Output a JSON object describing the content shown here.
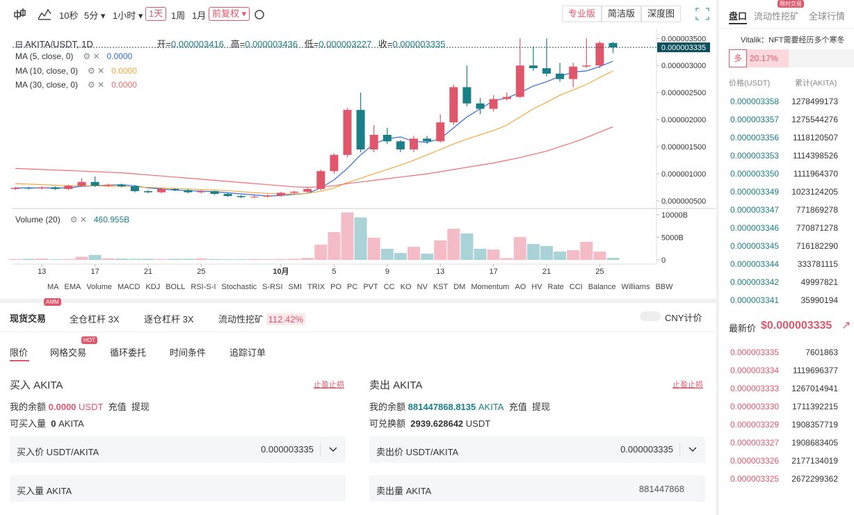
{
  "toolbar": {
    "intervals": [
      "10秒",
      "5分",
      "1小时",
      "1天",
      "1周",
      "1月"
    ],
    "adjust": "前复权",
    "views": [
      "专业版",
      "简洁版",
      "深度图"
    ]
  },
  "legend": {
    "symbol": "AKITA/USDT, 1D",
    "open_label": "开=",
    "open": "0.000003416",
    "high_label": "高=",
    "high": "0.000003436",
    "low_label": "低=",
    "low": "0.000003227",
    "close_label": "收=",
    "close": "0.000003335"
  },
  "chart_data": {
    "type": "candlestick",
    "categories": [
      null,
      null,
      "13",
      null,
      null,
      null,
      "17",
      null,
      null,
      null,
      "21",
      null,
      null,
      null,
      "25",
      null,
      null,
      null,
      null,
      null,
      "10月",
      null,
      null,
      null,
      "5",
      null,
      null,
      null,
      "9",
      null,
      null,
      null,
      "13",
      null,
      null,
      null,
      "17",
      null,
      null,
      null,
      "21",
      null,
      null,
      null,
      "25",
      null
    ],
    "open": [
      7.2e-07,
      7.4e-07,
      7.3e-07,
      7.5e-07,
      7.2e-07,
      7.8e-07,
      8.5e-07,
      7.8e-07,
      8e-07,
      7.7e-07,
      6.8e-07,
      6.6e-07,
      7.2e-07,
      7e-07,
      6.6e-07,
      6.8e-07,
      6.3e-07,
      5.9e-07,
      5.7e-07,
      5.8e-07,
      6e-07,
      6.5e-07,
      6.7e-07,
      7.2e-07,
      1.05e-06,
      1.35e-06,
      2.18e-06,
      1.45e-06,
      1.72e-06,
      1.6e-06,
      1.45e-06,
      1.65e-06,
      1.6e-06,
      1.95e-06,
      2.6e-06,
      2.3e-06,
      2.2e-06,
      2.38e-06,
      2.42e-06,
      3e-06,
      2.95e-06,
      2.85e-06,
      2.75e-06,
      2.98e-06,
      3e-06,
      3.416e-06
    ],
    "high": [
      7.6e-07,
      7.6e-07,
      7.7e-07,
      7.7e-07,
      8e-07,
      9.2e-07,
      9.5e-07,
      8.2e-07,
      8.2e-07,
      7.8e-07,
      7e-07,
      7.4e-07,
      7.4e-07,
      7.2e-07,
      7e-07,
      6.9e-07,
      6.5e-07,
      6.1e-07,
      6e-07,
      6.2e-07,
      6.7e-07,
      6.9e-07,
      7.4e-07,
      1.08e-06,
      1.38e-06,
      2.22e-06,
      2.5e-06,
      1.9e-06,
      1.85e-06,
      1.62e-06,
      1.7e-06,
      1.7e-06,
      2.1e-06,
      2.65e-06,
      3e-06,
      2.4e-06,
      2.45e-06,
      2.5e-06,
      3.5e-06,
      3.35e-06,
      3.5e-06,
      3.05e-06,
      3.05e-06,
      3.5e-06,
      3.45e-06,
      3.436e-06
    ],
    "low": [
      7e-07,
      7.1e-07,
      7.1e-07,
      7e-07,
      7e-07,
      7.6e-07,
      7.6e-07,
      7.6e-07,
      7.5e-07,
      6.6e-07,
      6.4e-07,
      6.4e-07,
      6.8e-07,
      6.4e-07,
      6.4e-07,
      6.1e-07,
      5.7e-07,
      5.5e-07,
      5.5e-07,
      5.6e-07,
      5.8e-07,
      6.3e-07,
      6.5e-07,
      7e-07,
      1e-06,
      1.3e-06,
      1.4e-06,
      1.4e-06,
      1.55e-06,
      1.4e-06,
      1.4e-06,
      1.55e-06,
      1.58e-06,
      1.9e-06,
      2.25e-06,
      2.1e-06,
      2.15e-06,
      2.35e-06,
      2.4e-06,
      2.9e-06,
      2.8e-06,
      2.7e-06,
      2.6e-06,
      2.95e-06,
      2.95e-06,
      3.227e-06
    ],
    "close": [
      7.4e-07,
      7.3e-07,
      7.5e-07,
      7.2e-07,
      7.8e-07,
      8.5e-07,
      7.8e-07,
      8e-07,
      7.7e-07,
      6.8e-07,
      6.6e-07,
      7.2e-07,
      7e-07,
      6.6e-07,
      6.8e-07,
      6.3e-07,
      5.9e-07,
      5.7e-07,
      5.8e-07,
      6e-07,
      6.5e-07,
      6.7e-07,
      7.2e-07,
      1.05e-06,
      1.35e-06,
      2.18e-06,
      1.45e-06,
      1.72e-06,
      1.6e-06,
      1.45e-06,
      1.65e-06,
      1.6e-06,
      1.95e-06,
      2.6e-06,
      2.3e-06,
      2.2e-06,
      2.38e-06,
      2.42e-06,
      3e-06,
      2.95e-06,
      2.85e-06,
      2.75e-06,
      2.98e-06,
      3e-06,
      3.416e-06,
      3.335e-06
    ],
    "up_color": "#e0566b",
    "down_color": "#1a7f86",
    "up_volume_color": "#f3bcc6",
    "down_volume_color": "#a9d3d7",
    "series": [
      {
        "name": "MA (5, close, 0)",
        "value_label": "0.0000",
        "color": "#2f6ae0",
        "values": [
          7.4e-07,
          7.4e-07,
          7.4e-07,
          7.4e-07,
          7.4e-07,
          7.7e-07,
          7.8e-07,
          7.9e-07,
          8e-07,
          7.8e-07,
          7.4e-07,
          7.2e-07,
          7e-07,
          6.9e-07,
          6.8e-07,
          6.7e-07,
          6.5e-07,
          6.3e-07,
          6.1e-07,
          5.9e-07,
          6e-07,
          6.2e-07,
          6.4e-07,
          7.4e-07,
          8.9e-07,
          1.1e-06,
          1.35e-06,
          1.55e-06,
          1.65e-06,
          1.68e-06,
          1.6e-06,
          1.58e-06,
          1.65e-06,
          1.85e-06,
          2.05e-06,
          2.2e-06,
          2.35e-06,
          2.4e-06,
          2.5e-06,
          2.62e-06,
          2.7e-06,
          2.8e-06,
          2.88e-06,
          2.9e-06,
          2.98e-06,
          3.08e-06
        ]
      },
      {
        "name": "MA (10, close, 0)",
        "value_label": "0.0000",
        "color": "#f3a83b",
        "values": [
          8.2e-07,
          8.1e-07,
          8e-07,
          7.9e-07,
          7.8e-07,
          7.8e-07,
          7.8e-07,
          7.7e-07,
          7.7e-07,
          7.6e-07,
          7.5e-07,
          7.4e-07,
          7.3e-07,
          7.2e-07,
          7.1e-07,
          7e-07,
          6.9e-07,
          6.7e-07,
          6.5e-07,
          6.4e-07,
          6.3e-07,
          6.3e-07,
          6.4e-07,
          6.8e-07,
          7.4e-07,
          8.4e-07,
          9.2e-07,
          1e-06,
          1.08e-06,
          1.16e-06,
          1.25e-06,
          1.35e-06,
          1.45e-06,
          1.55e-06,
          1.64e-06,
          1.72e-06,
          1.8e-06,
          1.9e-06,
          2.05e-06,
          2.2e-06,
          2.32e-06,
          2.45e-06,
          2.55e-06,
          2.65e-06,
          2.78e-06,
          2.9e-06
        ]
      },
      {
        "name": "MA (30, close, 0)",
        "value_label": "0.0000",
        "color": "#f26d6d",
        "values": [
          1.1e-06,
          1.09e-06,
          1.08e-06,
          1.07e-06,
          1.06e-06,
          1.05e-06,
          1.04e-06,
          1.03e-06,
          1.02e-06,
          1e-06,
          9.8e-07,
          9.6e-07,
          9.4e-07,
          9.2e-07,
          9e-07,
          8.8e-07,
          8.6e-07,
          8.4e-07,
          8.2e-07,
          8e-07,
          7.8e-07,
          7.6e-07,
          7.5e-07,
          7.6e-07,
          7.8e-07,
          8.2e-07,
          8.5e-07,
          8.8e-07,
          9.1e-07,
          9.4e-07,
          9.7e-07,
          1e-06,
          1.04e-06,
          1.08e-06,
          1.12e-06,
          1.16e-06,
          1.2e-06,
          1.25e-06,
          1.3e-06,
          1.36e-06,
          1.42e-06,
          1.5e-06,
          1.58e-06,
          1.67e-06,
          1.77e-06,
          1.87e-06
        ]
      }
    ],
    "ylim": [
      3.6e-07,
      3.67e-06
    ],
    "yticks": [
      {
        "value": 5e-07,
        "label": "0.000000500"
      },
      {
        "value": 1e-06,
        "label": "0.000001000"
      },
      {
        "value": 1.5e-06,
        "label": "0.000001500"
      },
      {
        "value": 2e-06,
        "label": "0.000002000"
      },
      {
        "value": 2.5e-06,
        "label": "0.000002500"
      },
      {
        "value": 3e-06,
        "label": "0.000003000"
      },
      {
        "value": 3.5e-06,
        "label": "0.000003500"
      }
    ],
    "grid": false,
    "last_price_label": "0.000003335",
    "volume": {
      "name": "Volume (20)",
      "value_label": "460.955B",
      "ylim": [
        0,
        10600
      ],
      "yticks": [
        0,
        {
          "value": 5000,
          "label": "5000B"
        },
        {
          "value": 10000,
          "label": "10000B"
        }
      ],
      "values": [
        200,
        250,
        300,
        150,
        200,
        700,
        1100,
        350,
        300,
        250,
        250,
        200,
        250,
        250,
        350,
        200,
        150,
        150,
        200,
        150,
        200,
        250,
        450,
        3400,
        6150,
        10500,
        9400,
        4900,
        2460,
        1540,
        2900,
        1380,
        4300,
        6900,
        5850,
        2460,
        2300,
        400,
        5080,
        3540,
        3080,
        1850,
        2150,
        4000,
        1850,
        460.955
      ]
    }
  },
  "indicators": [
    "MA",
    "EMA",
    "Volume",
    "MACD",
    "KDJ",
    "BOLL",
    "RSI-S-I",
    "Stochastic",
    "S-RSI",
    "SMI",
    "TRIX",
    "PO",
    "PC",
    "PVT",
    "CC",
    "KO",
    "NV",
    "KST",
    "DM",
    "Momentum",
    "AO",
    "HV",
    "Rate",
    "CCI",
    "Balance",
    "Williams",
    "BBW"
  ],
  "trade_tabs": [
    {
      "label": "现货交易",
      "badge": "AMM"
    },
    {
      "label": "全仓杠杆 3X"
    },
    {
      "label": "逐仓杠杆 3X"
    },
    {
      "label": "流动性挖矿",
      "tag": "112.42%"
    }
  ],
  "cny_toggle": "CNY计价",
  "order_types": [
    {
      "label": "限价"
    },
    {
      "label": "网格交易",
      "badge": "HOT"
    },
    {
      "label": "循环委托"
    },
    {
      "label": "时间条件"
    },
    {
      "label": "追踪订单"
    }
  ],
  "buy": {
    "title": "买入 AKITA",
    "tpsl": "止盈止损",
    "balance_label": "我的余额",
    "balance": "0.0000",
    "balance_unit": "USDT",
    "deposit": "充值",
    "withdraw": "提现",
    "avail_label": "可买入量",
    "avail": "0",
    "avail_unit": "AKITA",
    "price_label": "买入价 USDT/AKITA",
    "price": "0.000003335",
    "amount_label": "买入量 AKITA"
  },
  "sell": {
    "title": "卖出 AKITA",
    "tpsl": "止盈止损",
    "balance_label": "我的余额",
    "balance": "881447868.8135",
    "balance_unit": "AKITA",
    "deposit": "充值",
    "withdraw": "提现",
    "avail_label": "可兑换额",
    "avail": "2939.628642",
    "avail_unit": "USDT",
    "price_label": "卖出价 USDT/AKITA",
    "price": "0.000003335",
    "amount_label": "卖出量 AKITA",
    "amount": "881447868"
  },
  "side": {
    "tabs": [
      "盘口",
      "流动性挖矿",
      "全球行情"
    ],
    "tab_badge": "限时交易",
    "news": "Vitalik：NFT需要经历多个寒冬",
    "long_label": "多",
    "long_pct": "20.17%",
    "price_header": "价格(USDT)",
    "total_header": "累计(AKITA)",
    "buy_rows": [
      [
        "0.000003358",
        "1278499173"
      ],
      [
        "0.000003357",
        "1275544276"
      ],
      [
        "0.000003356",
        "1118120507"
      ],
      [
        "0.000003353",
        "1114398526"
      ],
      [
        "0.000003350",
        "1111964370"
      ],
      [
        "0.000003349",
        "1023124205"
      ],
      [
        "0.000003347",
        "771869278"
      ],
      [
        "0.000003346",
        "770871278"
      ],
      [
        "0.000003345",
        "716182290"
      ],
      [
        "0.000003344",
        "333781115"
      ],
      [
        "0.000003342",
        "49997821"
      ],
      [
        "0.000003341",
        "35990194"
      ]
    ],
    "last_label": "最新价",
    "last_price": "$0.000003335",
    "sell_rows": [
      [
        "0.000003335",
        "7601863"
      ],
      [
        "0.000003334",
        "1119696377"
      ],
      [
        "0.000003333",
        "1267014941"
      ],
      [
        "0.000003330",
        "1711392215"
      ],
      [
        "0.000003329",
        "1908357719"
      ],
      [
        "0.000003327",
        "1908683405"
      ],
      [
        "0.000003326",
        "2177134019"
      ],
      [
        "0.000003325",
        "2672299362"
      ]
    ]
  }
}
